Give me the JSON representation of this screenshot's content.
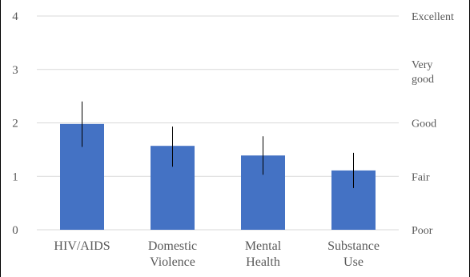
{
  "chart_data": {
    "type": "bar",
    "title": "",
    "xlabel": "",
    "ylabel": "",
    "categories": [
      [
        "HIV/AIDS"
      ],
      [
        "Domestic",
        "Violence"
      ],
      [
        "Mental",
        "Health"
      ],
      [
        "Substance",
        "Use"
      ]
    ],
    "series": [
      {
        "values": [
          1.98,
          1.57,
          1.39,
          1.11
        ],
        "error_low": [
          1.55,
          1.18,
          1.03,
          0.78
        ],
        "error_high": [
          2.4,
          1.93,
          1.75,
          1.44
        ],
        "color": "#4472C4"
      }
    ],
    "ylim": [
      0,
      4
    ],
    "yticks": [
      0,
      1,
      2,
      3,
      4
    ],
    "grid": true,
    "legend": "none",
    "right_axis_labels": [
      {
        "label": [
          "Excellent"
        ],
        "value": 4
      },
      {
        "label": [
          "Very",
          "good"
        ],
        "value": 3
      },
      {
        "label": [
          "Good"
        ],
        "value": 2
      },
      {
        "label": [
          "Fair"
        ],
        "value": 1
      },
      {
        "label": [
          "Poor"
        ],
        "value": 0
      }
    ]
  }
}
